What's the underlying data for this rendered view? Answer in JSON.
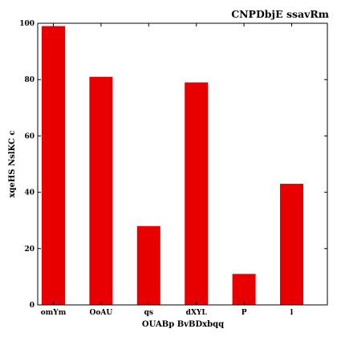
{
  "chart_data": {
    "type": "bar",
    "title": "CNPDbjE ssavRm",
    "xlabel": "OUABp BvBDxbqq",
    "ylabel": "xqeHS NslKC c",
    "categories": [
      "omYm",
      "OoAU",
      "qs",
      "dXYL",
      "P",
      "l"
    ],
    "values": [
      99,
      81,
      28,
      79,
      11,
      43
    ],
    "ylim": [
      0,
      100
    ],
    "yticks": [
      "0",
      "20",
      "40",
      "60",
      "80",
      "100"
    ],
    "bar_color": "#e80000",
    "grid": false,
    "legend": "none"
  }
}
